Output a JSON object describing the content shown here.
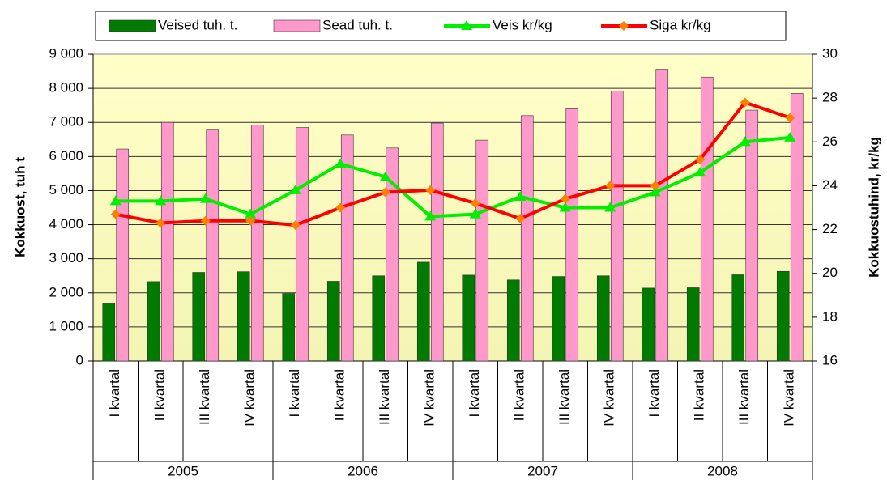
{
  "chart_data": {
    "type": "bar",
    "categories": [
      "I kvartal",
      "II kvartal",
      "III kvartal",
      "IV kvartal",
      "I kvartal",
      "II kvartal",
      "III kvartal",
      "IV kvartal",
      "I kvartal",
      "II kvartal",
      "III kvartal",
      "IV kvartal",
      "I kvartal",
      "II kvartal",
      "III kvartal",
      "IV kvartal"
    ],
    "category_groups": [
      "2005",
      "2006",
      "2007",
      "2008"
    ],
    "ylabel": "Kokkuost, tuh t",
    "y2label": "Kokkuostuhind, kr/kg",
    "ylim": [
      0,
      9000
    ],
    "yticks": [
      0,
      {
        "value": 1000,
        "label": "1 000"
      },
      {
        "value": 2000,
        "label": "2 000"
      },
      {
        "value": 3000,
        "label": "3 000"
      },
      {
        "value": 4000,
        "label": "4 000"
      },
      {
        "value": 5000,
        "label": "5 000"
      },
      {
        "value": 6000,
        "label": "6 000"
      },
      {
        "value": 7000,
        "label": "7 000"
      },
      {
        "value": 8000,
        "label": "8 000"
      },
      {
        "value": 9000,
        "label": "9 000"
      }
    ],
    "y2lim": [
      16,
      30
    ],
    "y2ticks": [
      16,
      18,
      20,
      22,
      24,
      26,
      28,
      30
    ],
    "grid": true,
    "legend": "top",
    "series": [
      {
        "name": "Veised tuh. t.",
        "type": "bar",
        "color": "#007a00",
        "values": [
          1700,
          2330,
          2600,
          2620,
          1980,
          2340,
          2500,
          2900,
          2520,
          2380,
          2480,
          2500,
          2140,
          2150,
          2530,
          2630
        ]
      },
      {
        "name": "Sead tuh. t.",
        "type": "bar",
        "color": "#ff99cc",
        "values": [
          6220,
          7000,
          6800,
          6920,
          6850,
          6630,
          6250,
          6980,
          6480,
          7200,
          7400,
          7920,
          8560,
          8330,
          7360,
          7850
        ]
      },
      {
        "name": "Veis kr/kg",
        "type": "line",
        "axis": "y2",
        "color": "#00ee00",
        "marker": "triangle",
        "marker_color": "#00ee00",
        "values": [
          23.3,
          23.3,
          23.4,
          22.7,
          23.8,
          25.0,
          24.4,
          22.6,
          22.7,
          23.5,
          23.0,
          23.0,
          23.7,
          24.6,
          26.0,
          26.2
        ]
      },
      {
        "name": "Siga kr/kg",
        "type": "line",
        "axis": "y2",
        "color": "#ff0000",
        "marker": "diamond",
        "marker_color": "#ff8000",
        "values": [
          22.7,
          22.3,
          22.4,
          22.4,
          22.2,
          23.0,
          23.7,
          23.8,
          23.2,
          22.5,
          23.4,
          24.0,
          24.0,
          25.2,
          27.8,
          27.1
        ]
      }
    ]
  }
}
